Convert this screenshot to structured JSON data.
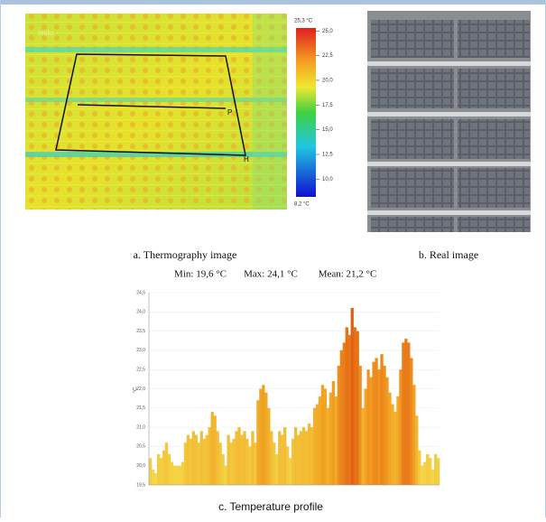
{
  "thermography": {
    "logo": "testo",
    "labels": [
      "P",
      "H"
    ],
    "colorbar": {
      "max": {
        "value": 25.3,
        "label": "25,3 °C"
      },
      "min": {
        "value": 8.2,
        "label": "8,2 °C"
      },
      "ticks": [
        {
          "value": 25.0,
          "label": "25,0"
        },
        {
          "value": 22.5,
          "label": "22,5"
        },
        {
          "value": 20.0,
          "label": "20,0"
        },
        {
          "value": 17.5,
          "label": "17,5"
        },
        {
          "value": 15.0,
          "label": "15,0"
        },
        {
          "value": 12.5,
          "label": "12,5"
        },
        {
          "value": 10.0,
          "label": "10,0"
        }
      ]
    },
    "caption": "a. Thermography image"
  },
  "real_image": {
    "caption": "b. Real image"
  },
  "stats": {
    "min": "Min: 19,6 °C",
    "max": "Max: 24,1 °C",
    "mean": "Mean: 21,2 °C"
  },
  "chart_data": {
    "type": "bar",
    "title": "c. Temperature profile",
    "y_label": "°C",
    "colors": [
      "#f4e04d",
      "#f2a423",
      "#e0520f"
    ],
    "grid": true,
    "ylim": [
      19.5,
      24.5
    ],
    "yticks": [
      {
        "value": 24.5,
        "label": "24,5"
      },
      {
        "value": 24.0,
        "label": "24,0"
      },
      {
        "value": 23.5,
        "label": "23,5"
      },
      {
        "value": 23.0,
        "label": "23,0"
      },
      {
        "value": 22.5,
        "label": "22,5"
      },
      {
        "value": 22.0,
        "label": "22,0"
      },
      {
        "value": 21.5,
        "label": "21,5"
      },
      {
        "value": 21.0,
        "label": "21,0"
      },
      {
        "value": 20.5,
        "label": "20,5"
      },
      {
        "value": 20.0,
        "label": "20,0"
      },
      {
        "value": 19.5,
        "label": "19,5"
      }
    ],
    "values": [
      20.2,
      19.9,
      19.8,
      20.3,
      20.2,
      20.4,
      20.6,
      20.3,
      20.1,
      20.0,
      20.0,
      20.0,
      20.1,
      20.6,
      20.8,
      20.7,
      20.9,
      20.8,
      20.6,
      20.9,
      20.7,
      20.8,
      21.0,
      21.4,
      21.3,
      20.9,
      20.6,
      20.3,
      20.0,
      20.8,
      20.6,
      20.7,
      20.9,
      21.0,
      20.8,
      20.9,
      20.7,
      20.5,
      20.9,
      20.6,
      21.7,
      22.0,
      22.1,
      21.9,
      21.5,
      20.9,
      20.6,
      20.3,
      20.9,
      20.8,
      21.0,
      20.5,
      20.2,
      20.7,
      21.0,
      20.8,
      20.9,
      21.0,
      20.9,
      21.1,
      21.0,
      21.5,
      21.6,
      21.8,
      22.1,
      22.0,
      21.5,
      21.9,
      22.2,
      21.8,
      22.6,
      23.0,
      23.2,
      23.6,
      23.4,
      24.1,
      23.6,
      23.5,
      22.6,
      21.5,
      22.0,
      22.5,
      22.3,
      22.7,
      22.8,
      22.5,
      22.9,
      22.6,
      22.3,
      21.9,
      21.6,
      21.4,
      21.8,
      22.5,
      23.2,
      23.3,
      23.2,
      22.8,
      22.1,
      21.3,
      20.4,
      20.0,
      20.1,
      20.3,
      20.2,
      19.9,
      20.3,
      20.2
    ]
  }
}
